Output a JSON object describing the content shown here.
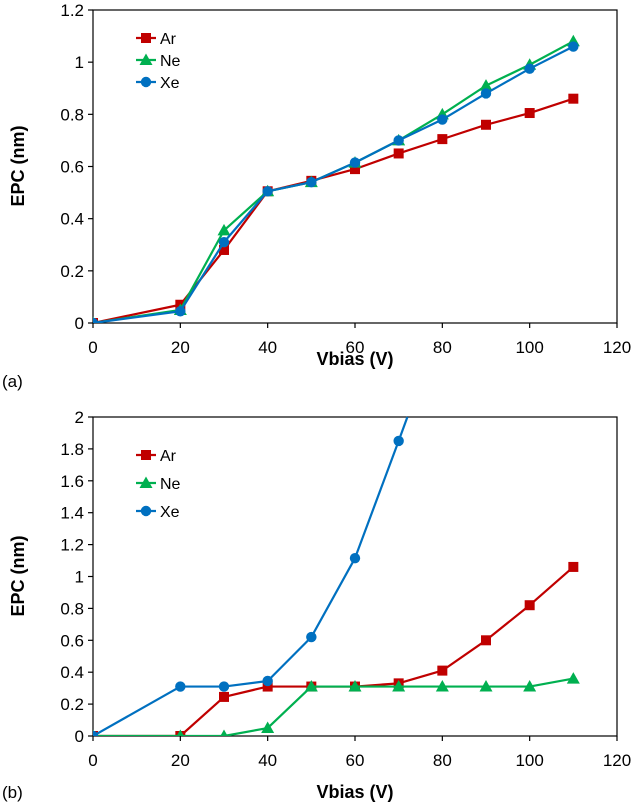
{
  "chart_data": [
    {
      "type": "line",
      "panel_label": "(a)",
      "xlabel": "Vbias (V)",
      "ylabel": "EPC (nm)",
      "xlim": [
        0,
        120
      ],
      "ylim": [
        0,
        1.2
      ],
      "xticks": [
        "0",
        "20",
        "40",
        "60",
        "80",
        "100",
        "120"
      ],
      "yticks": [
        "0",
        "0.2",
        "0.4",
        "0.6",
        "0.8",
        "1",
        "1.2"
      ],
      "grid": false,
      "legend": "top-left",
      "series": [
        {
          "name": "Ar",
          "color": "#c00000",
          "marker": "square",
          "x": [
            0,
            20,
            30,
            40,
            50,
            60,
            70,
            80,
            90,
            100,
            110
          ],
          "y": [
            0,
            0.07,
            0.28,
            0.505,
            0.545,
            0.59,
            0.65,
            0.705,
            0.76,
            0.805,
            0.86
          ]
        },
        {
          "name": "Ne",
          "color": "#00b050",
          "marker": "triangle",
          "x": [
            0,
            20,
            30,
            40,
            50,
            60,
            70,
            80,
            90,
            100,
            110
          ],
          "y": [
            0,
            0.05,
            0.355,
            0.505,
            0.54,
            0.615,
            0.7,
            0.8,
            0.91,
            0.99,
            1.08
          ]
        },
        {
          "name": "Xe",
          "color": "#0070c0",
          "marker": "circle",
          "x": [
            0,
            20,
            30,
            40,
            50,
            60,
            70,
            80,
            90,
            100,
            110
          ],
          "y": [
            0,
            0.045,
            0.31,
            0.505,
            0.54,
            0.615,
            0.7,
            0.78,
            0.88,
            0.975,
            1.06
          ]
        }
      ]
    },
    {
      "type": "line",
      "panel_label": "(b)",
      "xlabel": "Vbias (V)",
      "ylabel": "EPC (nm)",
      "xlim": [
        0,
        120
      ],
      "ylim": [
        0,
        2
      ],
      "xticks": [
        "0",
        "20",
        "40",
        "60",
        "80",
        "100",
        "120"
      ],
      "yticks": [
        "0",
        "0.2",
        "0.4",
        "0.6",
        "0.8",
        "1",
        "1.2",
        "1.4",
        "1.6",
        "1.8",
        "2"
      ],
      "grid": false,
      "legend": "top-left",
      "series": [
        {
          "name": "Ar",
          "color": "#c00000",
          "marker": "square",
          "x": [
            0,
            20,
            30,
            40,
            50,
            60,
            70,
            80,
            90,
            100,
            110
          ],
          "y": [
            0,
            0,
            0.245,
            0.31,
            0.31,
            0.31,
            0.33,
            0.41,
            0.6,
            0.82,
            1.06
          ]
        },
        {
          "name": "Ne",
          "color": "#00b050",
          "marker": "triangle",
          "x": [
            0,
            20,
            30,
            40,
            50,
            60,
            70,
            80,
            90,
            100,
            110
          ],
          "y": [
            0,
            0,
            0,
            0.05,
            0.31,
            0.31,
            0.31,
            0.31,
            0.31,
            0.31,
            0.36
          ]
        },
        {
          "name": "Xe",
          "color": "#0070c0",
          "marker": "circle",
          "x": [
            0,
            20,
            30,
            40,
            50,
            60,
            70,
            72
          ],
          "y": [
            0,
            0.31,
            0.31,
            0.345,
            0.62,
            1.115,
            1.85,
            2.0
          ],
          "marker_count": 7
        }
      ]
    }
  ]
}
